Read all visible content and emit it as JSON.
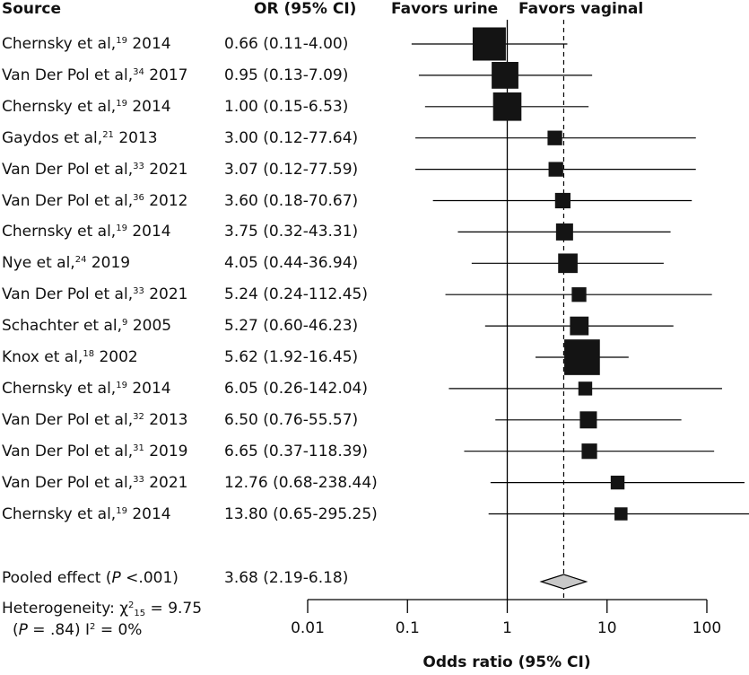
{
  "headers": {
    "source": "Source",
    "or": "OR (95% CI)",
    "favors_left": "Favors urine",
    "favors_right": "Favors vaginal"
  },
  "chart_data": {
    "type": "forest",
    "xscale": "log",
    "xlim": [
      0.01,
      100
    ],
    "xticks": [
      "0.01",
      "0.1",
      "1",
      "10",
      "100"
    ],
    "xlabel": "Odds ratio (95% CI)",
    "null_line": 1,
    "studies": [
      {
        "name": "Chernsky et al,",
        "ref": "19",
        "year": "2014",
        "or_text": "0.66 (0.11-4.00)",
        "or": 0.66,
        "lo": 0.11,
        "hi": 4.0,
        "weight": 3.0
      },
      {
        "name": "Van Der Pol et al,",
        "ref": "34",
        "year": "2017",
        "or_text": "0.95 (0.13-7.09)",
        "or": 0.95,
        "lo": 0.13,
        "hi": 7.09,
        "weight": 2.2
      },
      {
        "name": "Chernsky et al,",
        "ref": "19",
        "year": "2014",
        "or_text": "1.00 (0.15-6.53)",
        "or": 1.0,
        "lo": 0.15,
        "hi": 6.53,
        "weight": 2.4
      },
      {
        "name": "Gaydos et al,",
        "ref": "21",
        "year": "2013",
        "or_text": "3.00 (0.12-77.64)",
        "or": 3.0,
        "lo": 0.12,
        "hi": 77.64,
        "weight": 0.7
      },
      {
        "name": "Van Der Pol et al,",
        "ref": "33",
        "year": "2021",
        "or_text": "3.07 (0.12-77.59)",
        "or": 3.07,
        "lo": 0.12,
        "hi": 77.59,
        "weight": 0.7
      },
      {
        "name": "Van Der Pol et al,",
        "ref": "36",
        "year": "2012",
        "or_text": "3.60 (0.18-70.67)",
        "or": 3.6,
        "lo": 0.18,
        "hi": 70.67,
        "weight": 0.8
      },
      {
        "name": "Chernsky et al,",
        "ref": "19",
        "year": "2014",
        "or_text": "3.75 (0.32-43.31)",
        "or": 3.75,
        "lo": 0.32,
        "hi": 43.31,
        "weight": 1.0
      },
      {
        "name": "Nye et al,",
        "ref": "24",
        "year": "2019",
        "or_text": "4.05 (0.44-36.94)",
        "or": 4.05,
        "lo": 0.44,
        "hi": 36.94,
        "weight": 1.3
      },
      {
        "name": "Van Der Pol et al,",
        "ref": "33",
        "year": "2021",
        "or_text": "5.24 (0.24-112.45)",
        "or": 5.24,
        "lo": 0.24,
        "hi": 112.45,
        "weight": 0.7
      },
      {
        "name": "Schachter et al,",
        "ref": "9",
        "year": "2005",
        "or_text": "5.27 (0.60-46.23)",
        "or": 5.27,
        "lo": 0.6,
        "hi": 46.23,
        "weight": 1.2
      },
      {
        "name": "Knox et al,",
        "ref": "18",
        "year": "2002",
        "or_text": "5.62 (1.92-16.45)",
        "or": 5.62,
        "lo": 1.92,
        "hi": 16.45,
        "weight": 3.3
      },
      {
        "name": "Chernsky et al,",
        "ref": "19",
        "year": "2014",
        "or_text": "6.05 (0.26-142.04)",
        "or": 6.05,
        "lo": 0.26,
        "hi": 142.04,
        "weight": 0.6
      },
      {
        "name": "Van Der Pol et al,",
        "ref": "32",
        "year": "2013",
        "or_text": "6.50 (0.76-55.57)",
        "or": 6.5,
        "lo": 0.76,
        "hi": 55.57,
        "weight": 1.0
      },
      {
        "name": "Van Der Pol et al,",
        "ref": "31",
        "year": "2019",
        "or_text": "6.65 (0.37-118.39)",
        "or": 6.65,
        "lo": 0.37,
        "hi": 118.39,
        "weight": 0.8
      },
      {
        "name": "Van Der Pol et al,",
        "ref": "33",
        "year": "2021",
        "or_text": "12.76 (0.68-238.44)",
        "or": 12.76,
        "lo": 0.68,
        "hi": 238.44,
        "weight": 0.6
      },
      {
        "name": "Chernsky et al,",
        "ref": "19",
        "year": "2014",
        "or_text": "13.80 (0.65-295.25)",
        "or": 13.8,
        "lo": 0.65,
        "hi": 295.25,
        "weight": 0.5
      }
    ],
    "pooled": {
      "label": "Pooled effect (",
      "p_italic": "P",
      "p_text": " <.001)",
      "or_text": "3.68 (2.19-6.18)",
      "or": 3.68,
      "lo": 2.19,
      "hi": 6.18
    },
    "heterogeneity": {
      "line1_prefix": "Heterogeneity: χ",
      "line1_sup": "2",
      "line1_sub": "15",
      "line1_suffix": " = 9.75",
      "line2_open": "(",
      "line2_p": "P",
      "line2_mid": " = .84) I",
      "line2_sup": "2",
      "line2_suffix": " = 0%"
    }
  }
}
